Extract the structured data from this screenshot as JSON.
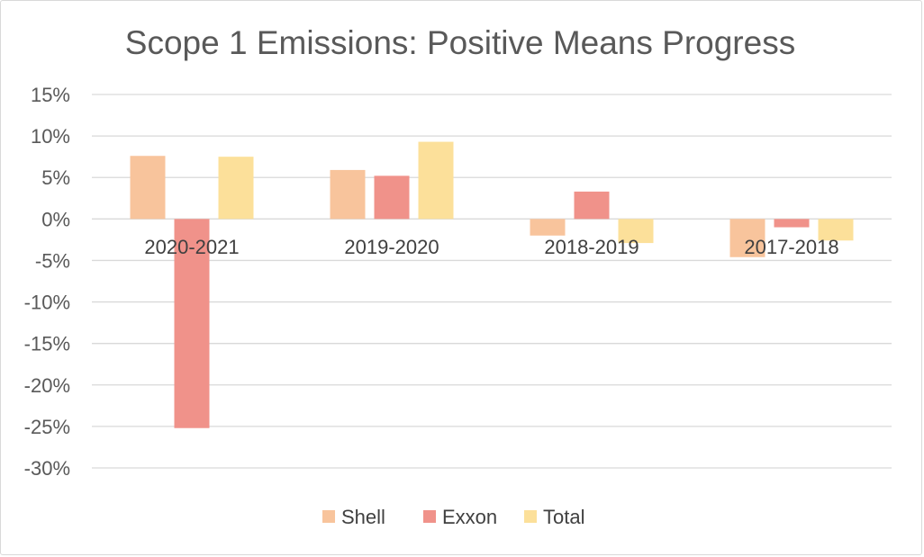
{
  "chart_data": {
    "type": "bar",
    "title": "Scope 1 Emissions: Positive Means Progress",
    "xlabel": "",
    "ylabel": "",
    "categories": [
      "2020-2021",
      "2019-2020",
      "2018-2019",
      "2017-2018"
    ],
    "series": [
      {
        "name": "Shell",
        "color": "#f8c49c",
        "values": [
          7.6,
          5.9,
          -2.0,
          -4.6
        ]
      },
      {
        "name": "Exxon",
        "color": "#f0928a",
        "values": [
          -25.2,
          5.2,
          3.3,
          -1.0
        ]
      },
      {
        "name": "Total",
        "color": "#fce09a",
        "values": [
          7.5,
          9.3,
          -2.9,
          -2.6
        ]
      }
    ],
    "ylim": [
      -30,
      15
    ],
    "ytick_step": 5,
    "ytick_labels": [
      "15%",
      "10%",
      "5%",
      "0%",
      "-5%",
      "-10%",
      "-15%",
      "-20%",
      "-25%",
      "-30%"
    ],
    "grid": true,
    "legend_position": "bottom"
  }
}
